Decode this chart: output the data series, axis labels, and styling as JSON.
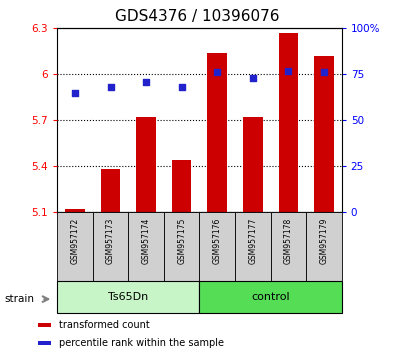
{
  "title": "GDS4376 / 10396076",
  "samples": [
    "GSM957172",
    "GSM957173",
    "GSM957174",
    "GSM957175",
    "GSM957176",
    "GSM957177",
    "GSM957178",
    "GSM957179"
  ],
  "bar_values": [
    5.12,
    5.38,
    5.72,
    5.44,
    6.14,
    5.72,
    6.27,
    6.12
  ],
  "dot_values": [
    65,
    68,
    71,
    68,
    76,
    73,
    77,
    76
  ],
  "bar_bottom": 5.1,
  "ylim_left": [
    5.1,
    6.3
  ],
  "ylim_right": [
    0,
    100
  ],
  "yticks_left": [
    5.1,
    5.4,
    5.7,
    6.0,
    6.3
  ],
  "yticks_right": [
    0,
    25,
    50,
    75,
    100
  ],
  "ytick_labels_left": [
    "5.1",
    "5.4",
    "5.7",
    "6",
    "6.3"
  ],
  "ytick_labels_right": [
    "0",
    "25",
    "50",
    "75",
    "100%"
  ],
  "groups": [
    {
      "label": "Ts65Dn",
      "start": 0,
      "end": 3,
      "color": "#c8f5c8"
    },
    {
      "label": "control",
      "start": 4,
      "end": 7,
      "color": "#55dd55"
    }
  ],
  "bar_color": "#cc0000",
  "dot_color": "#2222cc",
  "bar_width": 0.55,
  "sample_bg_color": "#d0d0d0",
  "legend_items": [
    {
      "color": "#cc0000",
      "label": "transformed count"
    },
    {
      "color": "#2222cc",
      "label": "percentile rank within the sample"
    }
  ],
  "strain_label": "strain",
  "title_fontsize": 11,
  "tick_fontsize": 7.5,
  "sample_fontsize": 5.5,
  "group_fontsize": 8,
  "legend_fontsize": 7
}
